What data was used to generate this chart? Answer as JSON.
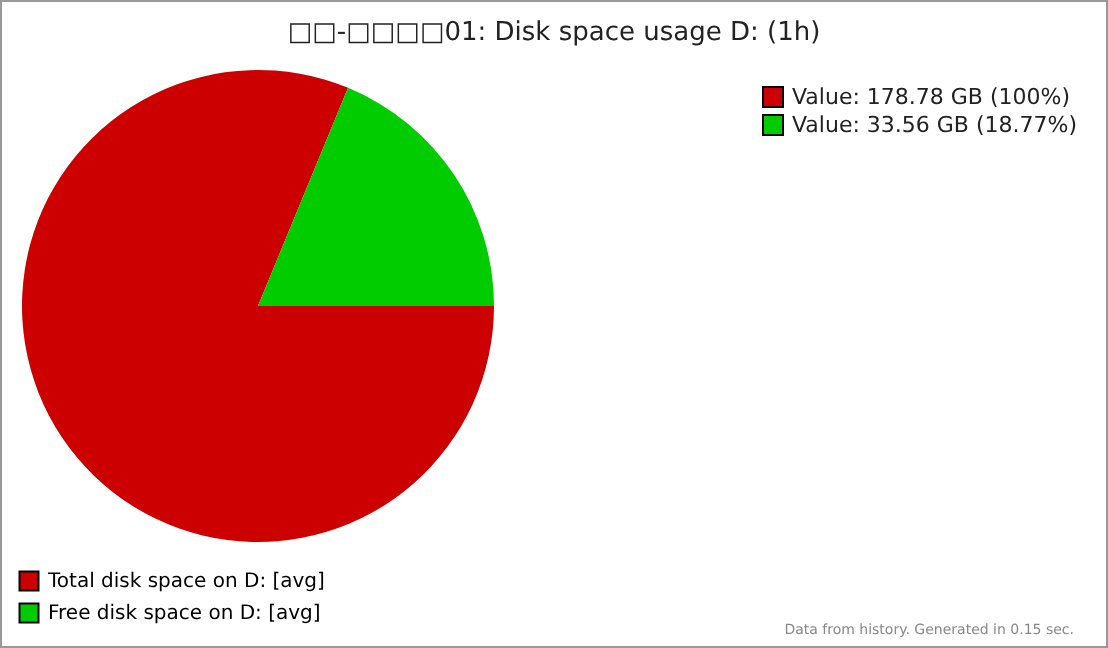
{
  "chart_data": {
    "type": "pie",
    "title": "□□-□□□□01: Disk space usage D: (1h)",
    "categories": [
      "Total disk space on D:   [avg]",
      "Free disk space on D:   [avg]"
    ],
    "values": [
      81.23,
      18.77
    ],
    "colors": [
      "#cc0000",
      "#00cc00"
    ],
    "legend": "bottom left",
    "annotations": [
      "Value: 178.78 GB (100%)",
      "Value: 33.56 GB (18.77%)",
      "Data from history. Generated in 0.15 sec."
    ]
  }
}
